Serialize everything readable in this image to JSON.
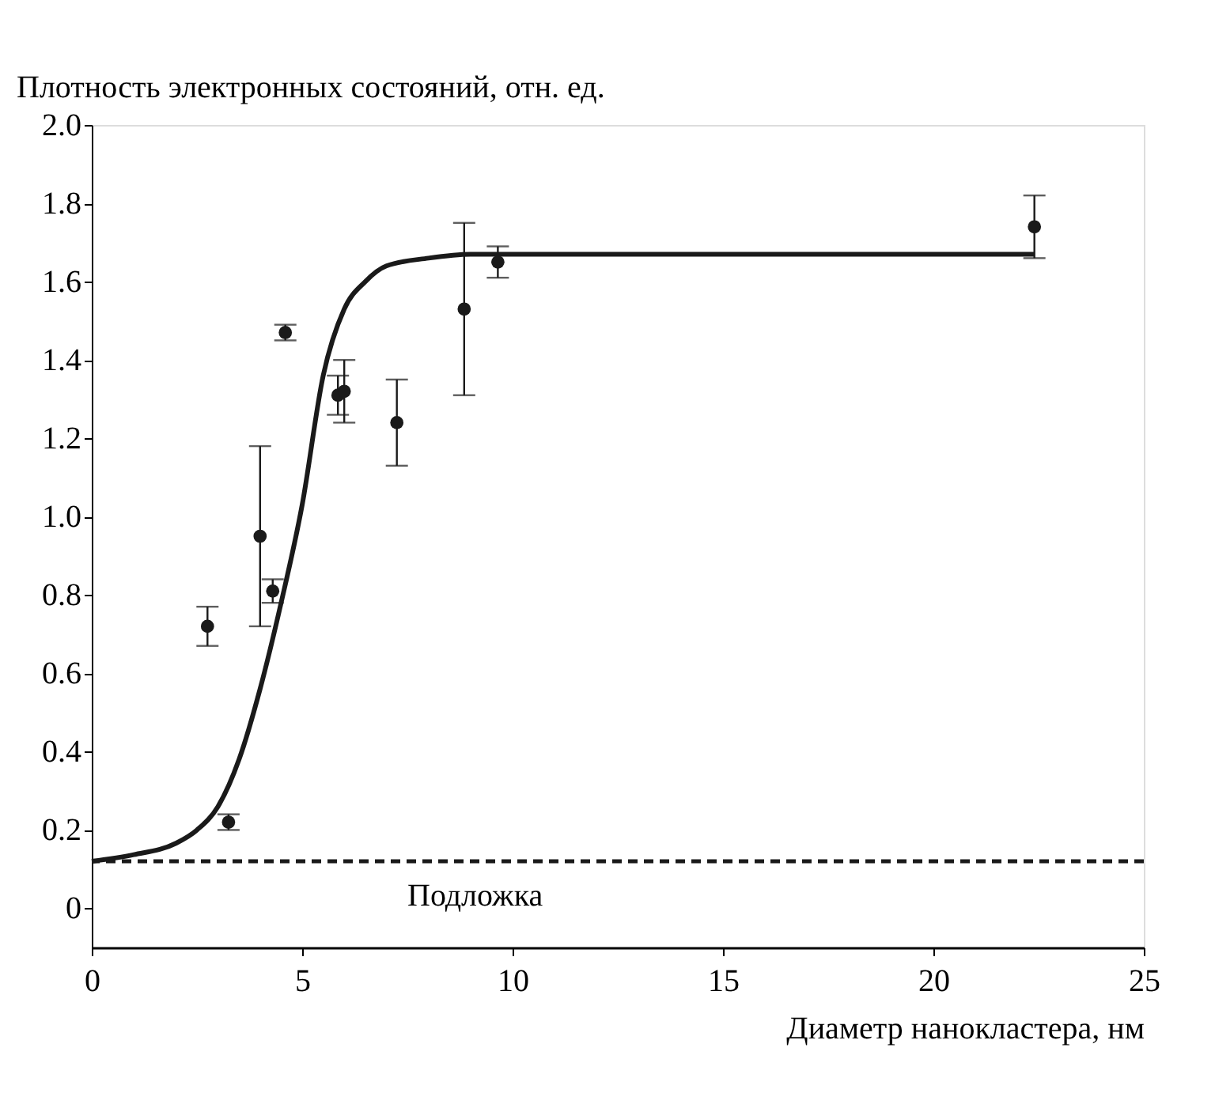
{
  "chart_data": {
    "type": "scatter",
    "xlabel": "Диаметр нанокластера, нм",
    "ylabel": "Плотность электронных состояний, отн. ед.",
    "xlim": [
      0,
      25
    ],
    "xticks": [
      0,
      5,
      10,
      15,
      20,
      25
    ],
    "ylim": [
      -0.1,
      2.0
    ],
    "yticks": [
      0,
      0.2,
      0.4,
      0.6,
      0.8,
      {
        "value": 1,
        "label": "1.0"
      },
      1.2,
      1.4,
      1.6,
      1.8,
      {
        "value": 2,
        "label": "2.0"
      }
    ],
    "grid": false,
    "series": [
      {
        "color": "#1a1a1a",
        "marker": "circle",
        "x": [
          2.75,
          3.25,
          4.0,
          4.3,
          4.6,
          5.85,
          6.0,
          7.25,
          8.85,
          9.65,
          22.4
        ],
        "values": [
          0.72,
          0.22,
          0.95,
          0.81,
          1.47,
          1.31,
          1.32,
          1.24,
          1.53,
          1.65,
          1.74
        ],
        "errors": [
          [
            0.67,
            0.77
          ],
          [
            0.2,
            0.24
          ],
          [
            0.72,
            1.18
          ],
          [
            0.78,
            0.84
          ],
          [
            1.45,
            1.49
          ],
          [
            1.26,
            1.36
          ],
          [
            1.24,
            1.4
          ],
          [
            1.13,
            1.35
          ],
          [
            1.31,
            1.75
          ],
          [
            1.61,
            1.69
          ],
          [
            1.66,
            1.82
          ]
        ]
      },
      {
        "type": "line",
        "color": "#1a1a1a",
        "line_style": "solid",
        "x": [
          0,
          1,
          2,
          2.5,
          3,
          3.5,
          4,
          4.5,
          5,
          5.5,
          6,
          6.5,
          7,
          8,
          9,
          10,
          15,
          22.4
        ],
        "values": [
          0.12,
          0.137,
          0.166,
          0.2,
          0.26,
          0.38,
          0.56,
          0.78,
          1.03,
          1.36,
          1.53,
          1.6,
          1.64,
          1.66,
          1.67,
          1.67,
          1.67,
          1.67
        ]
      }
    ],
    "ref_lines": [
      {
        "axis": "y",
        "value": 0.12,
        "line_style": "dashed",
        "color": "#1a1a1a",
        "label": "Подложка"
      }
    ]
  }
}
